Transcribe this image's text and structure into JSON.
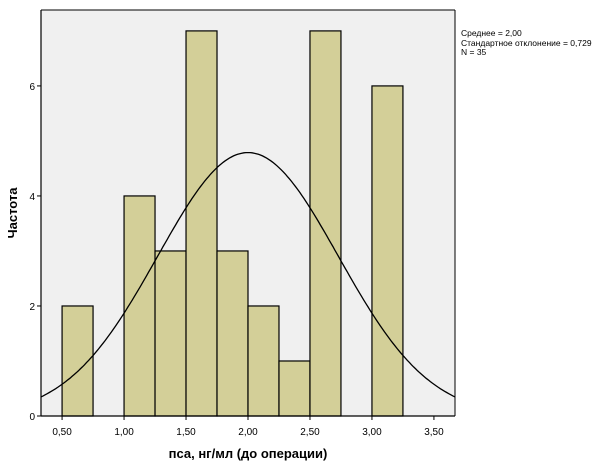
{
  "chart_data": {
    "type": "bar",
    "subtype": "histogram",
    "xlabel": "пса, нг/мл (до операции)",
    "ylabel": "Частота",
    "xlim": [
      0.33,
      3.67
    ],
    "ylim": [
      0,
      7.38
    ],
    "x_ticks": [
      0.5,
      1.0,
      1.5,
      2.0,
      2.5,
      3.0,
      3.5
    ],
    "x_tick_labels": [
      "0,50",
      "1,00",
      "1,50",
      "2,00",
      "2,50",
      "3,00",
      "3,50"
    ],
    "y_ticks": [
      0,
      2,
      4,
      6
    ],
    "y_tick_labels": [
      "0",
      "2",
      "4",
      "6"
    ],
    "bins": [
      {
        "from": 0.5,
        "to": 0.75,
        "count": 2
      },
      {
        "from": 1.0,
        "to": 1.25,
        "count": 4
      },
      {
        "from": 1.25,
        "to": 1.5,
        "count": 3
      },
      {
        "from": 1.5,
        "to": 1.75,
        "count": 7
      },
      {
        "from": 1.75,
        "to": 2.0,
        "count": 3
      },
      {
        "from": 2.0,
        "to": 2.25,
        "count": 2
      },
      {
        "from": 2.25,
        "to": 2.5,
        "count": 1
      },
      {
        "from": 2.5,
        "to": 2.75,
        "count": 7
      },
      {
        "from": 3.0,
        "to": 3.25,
        "count": 6
      }
    ],
    "normal_curve": {
      "mean": 2.0,
      "sd": 0.729,
      "n": 35,
      "bin_width": 0.25
    },
    "stats_labels": [
      "Среднее = 2,00",
      "Стандартное отклонение = 0,729",
      "N = 35"
    ],
    "colors": {
      "bar": "#d3cf98",
      "plot_bg": "#f0f0f0",
      "line": "#000000"
    },
    "grid": false
  }
}
